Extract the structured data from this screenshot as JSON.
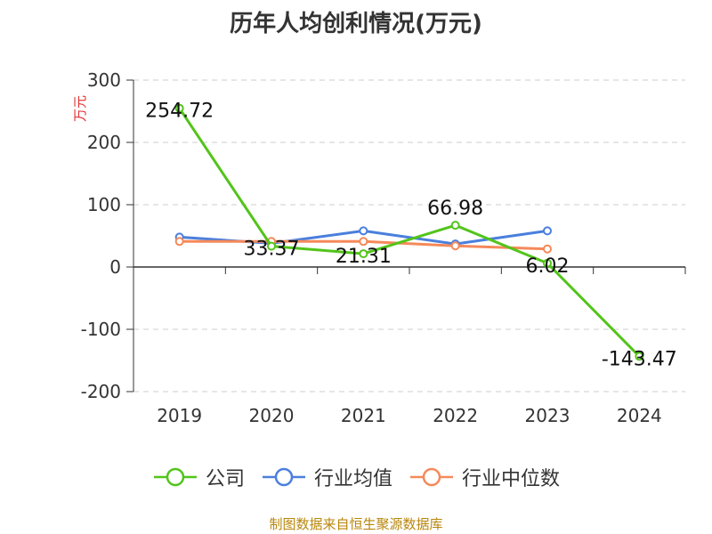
{
  "chart_data": {
    "type": "line",
    "title": "历年人均创利情况(万元)",
    "ylabel": "万元",
    "xlabel": "",
    "categories": [
      "2019",
      "2020",
      "2021",
      "2022",
      "2023",
      "2024"
    ],
    "ylim": [
      -200,
      300
    ],
    "yticks": [
      300,
      200,
      100,
      0,
      -100,
      -200
    ],
    "grid": true,
    "legend_position": "bottom",
    "series": [
      {
        "name": "公司",
        "color": "#52c41a",
        "values": [
          254.72,
          33.37,
          21.31,
          66.98,
          6.02,
          -143.47
        ],
        "labels": [
          "254.72",
          "33.37",
          "21.31",
          "66.98",
          "6.02",
          "-143.47"
        ]
      },
      {
        "name": "行业均值",
        "color": "#4a7fdc",
        "values": [
          48,
          38,
          58,
          37,
          58,
          null
        ]
      },
      {
        "name": "行业中位数",
        "color": "#f5895a",
        "values": [
          41,
          41,
          41,
          34,
          29,
          null
        ]
      }
    ]
  },
  "source": "制图数据来自恒生聚源数据库"
}
